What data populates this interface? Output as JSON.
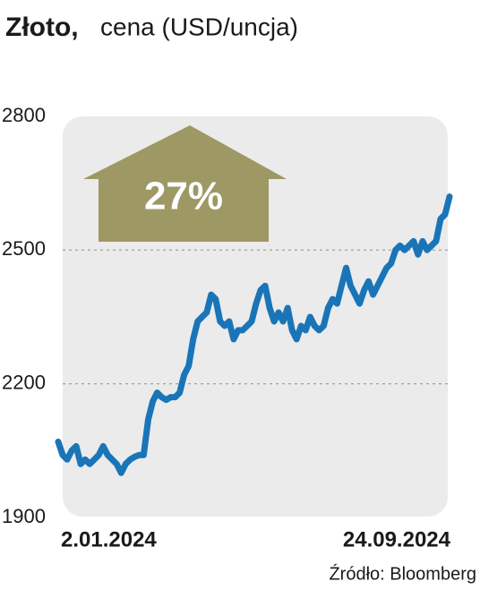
{
  "chart_data": {
    "type": "line",
    "title": "Złoto,",
    "subtitle": "cena (USD/uncja)",
    "annotation": "27%",
    "source": "Źródło: Bloomberg",
    "categories": [
      "2.01.2024",
      null,
      null,
      null,
      null,
      null,
      null,
      null,
      null,
      null,
      null,
      null,
      null,
      null,
      null,
      null,
      null,
      null,
      null,
      null,
      null,
      null,
      null,
      null,
      null,
      null,
      null,
      null,
      null,
      null,
      null,
      null,
      null,
      null,
      null,
      null,
      null,
      null,
      null,
      null,
      null,
      null,
      null,
      null,
      null,
      null,
      null,
      null,
      null,
      null,
      null,
      null,
      null,
      null,
      null,
      null,
      null,
      null,
      null,
      null,
      null,
      null,
      null,
      null,
      null,
      null,
      null,
      null,
      null,
      null,
      null,
      null,
      null,
      null,
      null,
      null,
      null,
      null,
      null,
      null,
      null,
      null,
      null,
      null,
      null,
      null,
      null,
      "24.09.2024"
    ],
    "values": [
      2070,
      2040,
      2030,
      2050,
      2060,
      2020,
      2030,
      2020,
      2030,
      2040,
      2060,
      2040,
      2030,
      2020,
      2000,
      2020,
      2030,
      2036,
      2040,
      2040,
      2120,
      2160,
      2180,
      2170,
      2164,
      2170,
      2170,
      2180,
      2220,
      2240,
      2300,
      2340,
      2350,
      2360,
      2400,
      2390,
      2340,
      2330,
      2340,
      2300,
      2320,
      2320,
      2330,
      2340,
      2380,
      2410,
      2420,
      2370,
      2340,
      2360,
      2340,
      2370,
      2320,
      2300,
      2330,
      2320,
      2350,
      2330,
      2320,
      2330,
      2370,
      2390,
      2380,
      2420,
      2460,
      2420,
      2400,
      2380,
      2410,
      2430,
      2400,
      2420,
      2440,
      2460,
      2470,
      2500,
      2510,
      2500,
      2510,
      2520,
      2490,
      2520,
      2500,
      2510,
      2520,
      2570,
      2580,
      2620
    ],
    "color": "#1a75b8",
    "ylim": [
      1900,
      2800
    ],
    "yticks": [
      1900,
      2200,
      2500,
      2800
    ],
    "grid": true
  }
}
